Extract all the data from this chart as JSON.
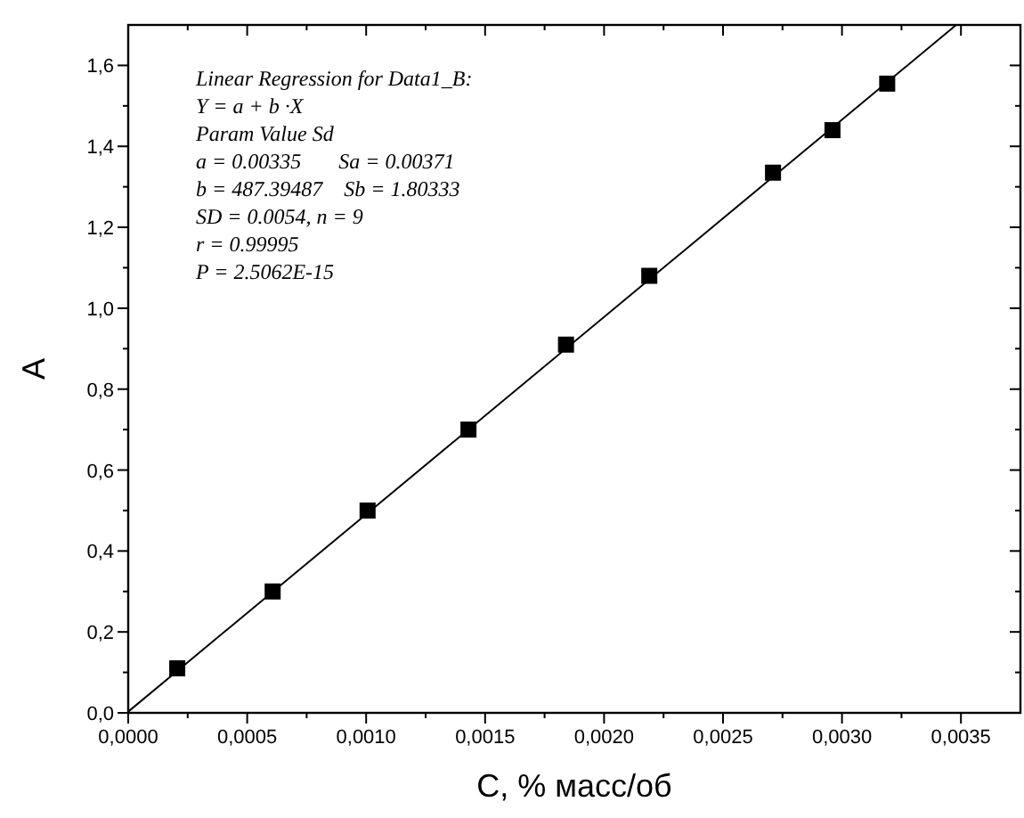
{
  "chart_data": {
    "type": "scatter",
    "xlabel": "C, % масс/об",
    "ylabel": "A",
    "xlim": [
      0,
      0.00375
    ],
    "ylim": [
      0,
      1.7
    ],
    "xticks": [
      {
        "value": 0,
        "label": "0,0000"
      },
      {
        "value": 0.00025,
        "label": null
      },
      {
        "value": 0.0005,
        "label": "0,0005"
      },
      {
        "value": 0.00075,
        "label": null
      },
      {
        "value": 0.001,
        "label": "0,0010"
      },
      {
        "value": 0.00125,
        "label": null
      },
      {
        "value": 0.0015,
        "label": "0,0015"
      },
      {
        "value": 0.00175,
        "label": null
      },
      {
        "value": 0.002,
        "label": "0,0020"
      },
      {
        "value": 0.00225,
        "label": null
      },
      {
        "value": 0.0025,
        "label": "0,0025"
      },
      {
        "value": 0.00275,
        "label": null
      },
      {
        "value": 0.003,
        "label": "0,0030"
      },
      {
        "value": 0.00325,
        "label": null
      },
      {
        "value": 0.0035,
        "label": "0,0035"
      }
    ],
    "yticks": [
      {
        "value": 0,
        "label": "0,0"
      },
      {
        "value": 0.1,
        "label": null
      },
      {
        "value": 0.2,
        "label": "0,2"
      },
      {
        "value": 0.3,
        "label": null
      },
      {
        "value": 0.4,
        "label": "0,4"
      },
      {
        "value": 0.5,
        "label": null
      },
      {
        "value": 0.6,
        "label": "0,6"
      },
      {
        "value": 0.7,
        "label": null
      },
      {
        "value": 0.8,
        "label": "0,8"
      },
      {
        "value": 0.9,
        "label": null
      },
      {
        "value": 1.0,
        "label": "1,0"
      },
      {
        "value": 1.1,
        "label": null
      },
      {
        "value": 1.2,
        "label": "1,2"
      },
      {
        "value": 1.3,
        "label": null
      },
      {
        "value": 1.4,
        "label": "1,4"
      },
      {
        "value": 1.5,
        "label": null
      },
      {
        "value": 1.6,
        "label": "1,6"
      }
    ],
    "grid": false,
    "series": [
      {
        "color": "#000000",
        "marker": "square",
        "x": [
          0.000206,
          0.000607,
          0.001006,
          0.00143,
          0.00184,
          0.00219,
          0.00271,
          0.00296,
          0.00319
        ],
        "values": [
          0.11,
          0.3,
          0.5,
          0.7,
          0.91,
          1.08,
          1.335,
          1.44,
          1.555
        ]
      },
      {
        "type": "line",
        "color": "#000000",
        "line_style": "solid",
        "x": [
          0,
          0.00348
        ],
        "values": [
          0.003,
          1.7
        ]
      }
    ],
    "annotations": [
      "Linear Regression for Data1_B:",
      "Y = a + b ·X",
      "Param Value Sd",
      "a = 0.00335       Sa = 0.00371",
      "b = 487.39487    Sb = 1.80333",
      "SD = 0.0054, n = 9",
      "r = 0.99995",
      "P = 2.5062E-15"
    ]
  }
}
